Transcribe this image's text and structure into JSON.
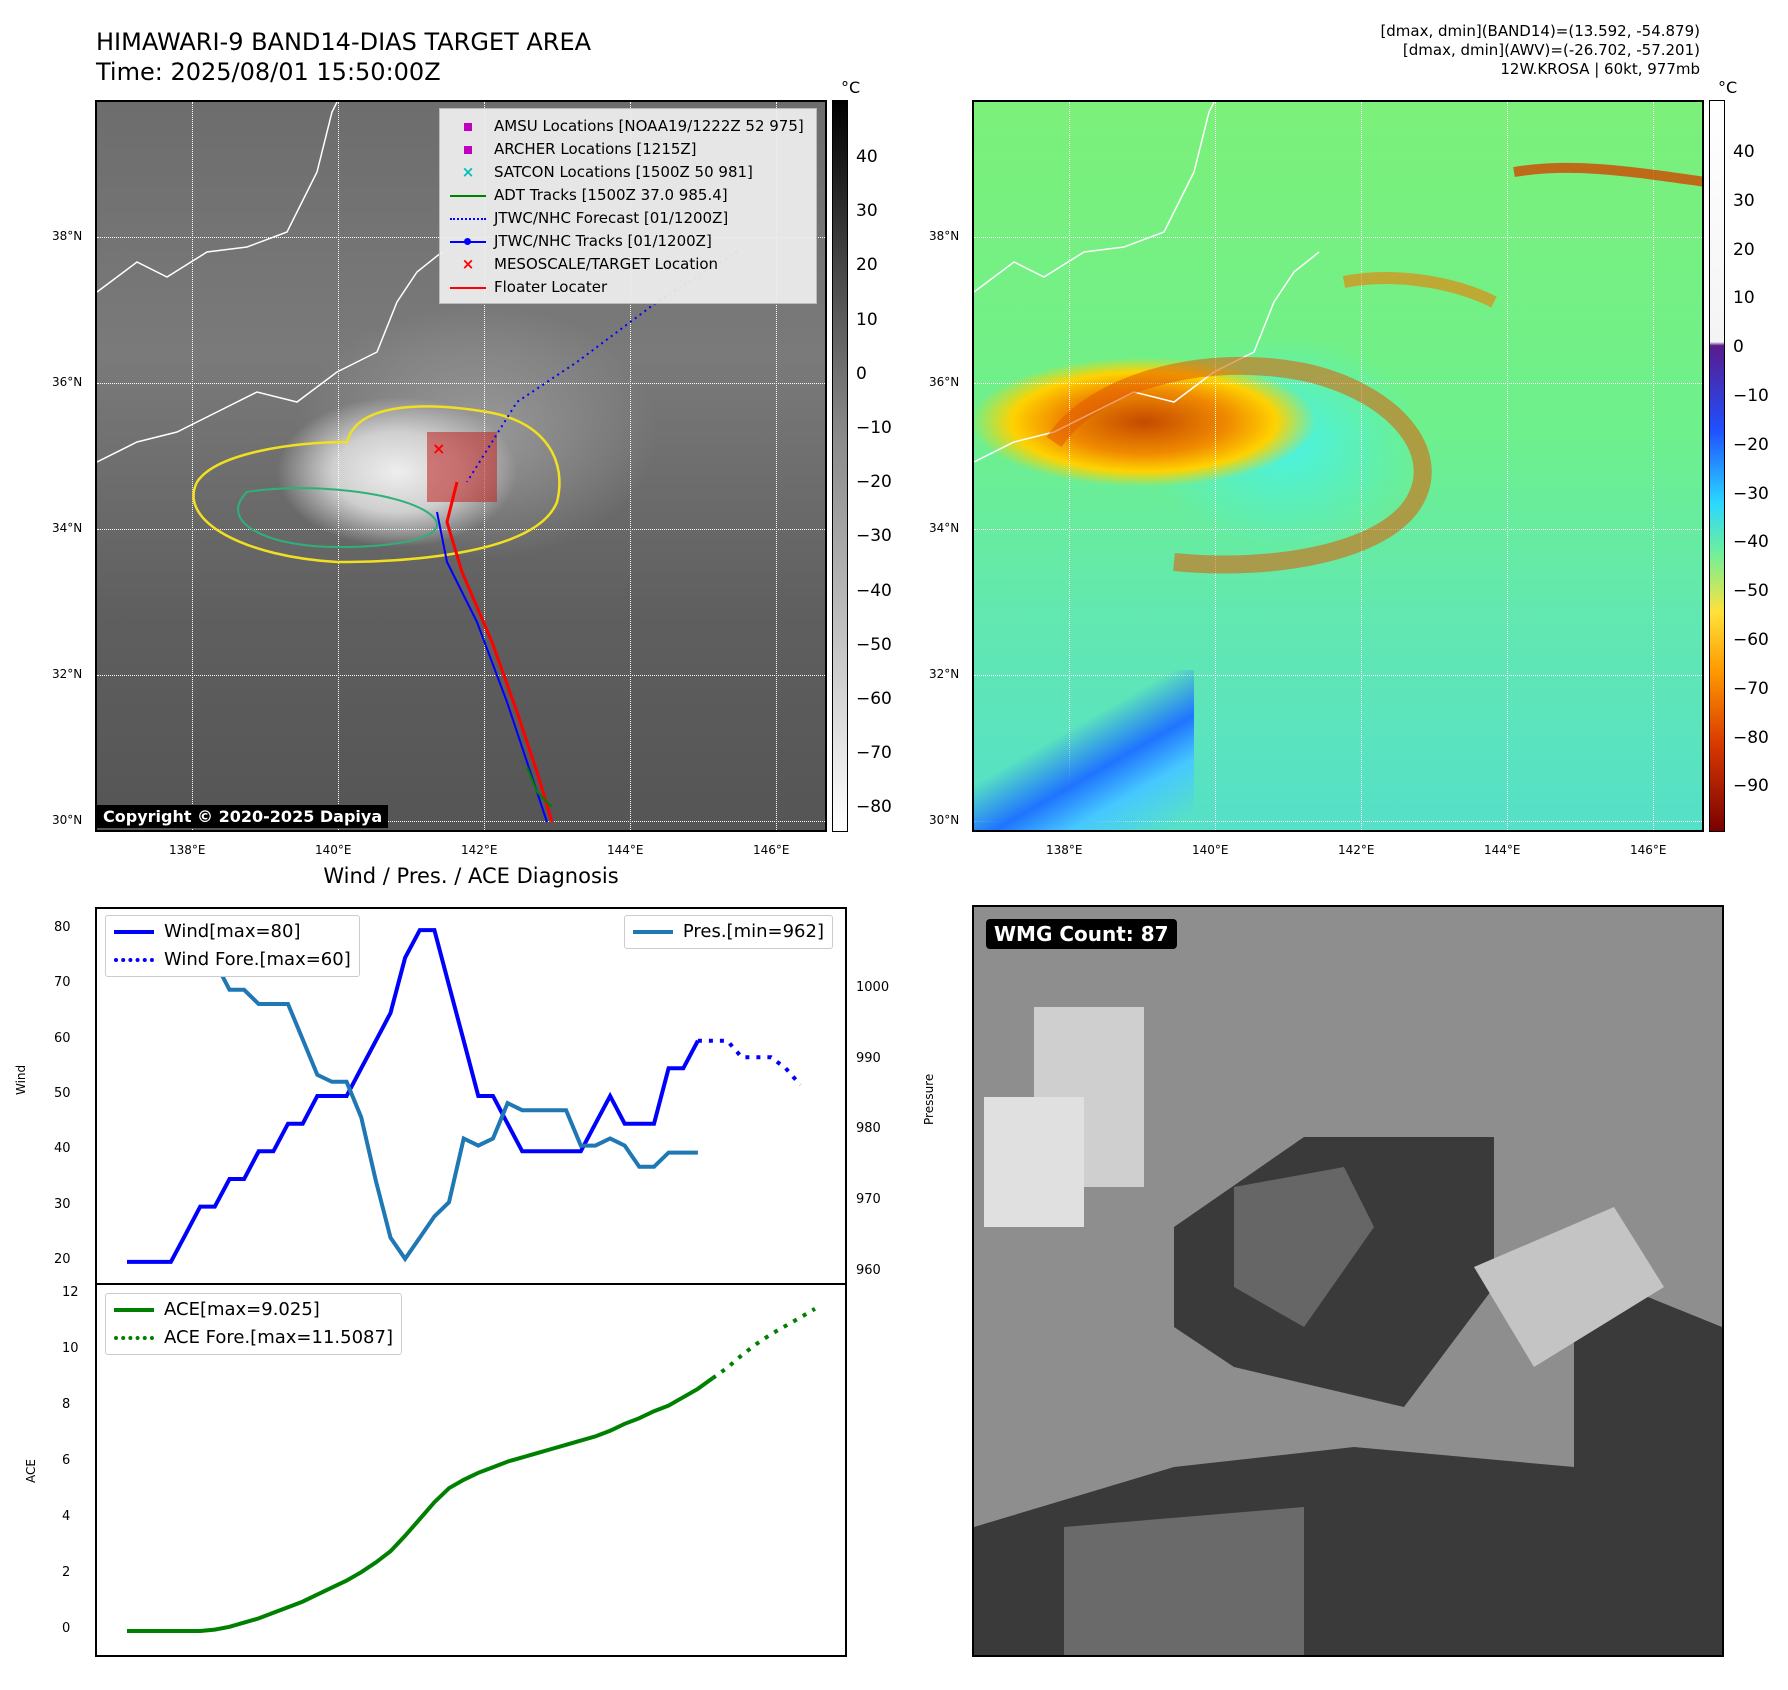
{
  "header": {
    "title_line1": "HIMAWARI-9 BAND14-DIAS TARGET AREA",
    "title_line2": "Time: 2025/08/01 15:50:00Z",
    "info_line1": "[dmax, dmin](BAND14)=(13.592, -54.879)",
    "info_line2": "[dmax, dmin](AWV)=(-26.702, -57.201)",
    "info_line3": "12W.KROSA | 60kt, 977mb"
  },
  "maps": {
    "lat_labels": [
      "38°N",
      "36°N",
      "34°N",
      "32°N",
      "30°N"
    ],
    "lon_labels": [
      "138°E",
      "140°E",
      "142°E",
      "144°E",
      "146°E"
    ],
    "copyright": "Copyright © 2020-2025 Dapiya",
    "colorbar1": {
      "unit": "°C",
      "ticks": [
        "40",
        "30",
        "20",
        "10",
        "0",
        "−10",
        "−20",
        "−30",
        "−40",
        "−50",
        "−60",
        "−70",
        "−80"
      ]
    },
    "colorbar2": {
      "unit": "°C",
      "ticks": [
        "40",
        "30",
        "20",
        "10",
        "0",
        "−10",
        "−20",
        "−30",
        "−40",
        "−50",
        "−60",
        "−70",
        "−80",
        "−90"
      ]
    },
    "legend": [
      {
        "label": "AMSU Locations [NOAA19/1222Z 52 975]",
        "icon": "square-marker",
        "color": "#bf00bf"
      },
      {
        "label": "ARCHER Locations [1215Z]",
        "icon": "square-marker",
        "color": "#bf00bf"
      },
      {
        "label": "SATCON Locations [1500Z 50 981]",
        "icon": "x-marker",
        "color": "#00bfbf"
      },
      {
        "label": "ADT Tracks [1500Z 37.0 985.4]",
        "icon": "solid-line",
        "color": "#008000"
      },
      {
        "label": "JTWC/NHC Forecast [01/1200Z]",
        "icon": "dotted-line",
        "color": "#0000ff"
      },
      {
        "label": "JTWC/NHC Tracks [01/1200Z]",
        "icon": "line-dot",
        "color": "#0000ff"
      },
      {
        "label": "MESOSCALE/TARGET Location",
        "icon": "x-marker",
        "color": "#ff0000"
      },
      {
        "label": "Floater Locater",
        "icon": "solid-line",
        "color": "#ff0000"
      }
    ]
  },
  "diagnosis": {
    "title": "Wind / Pres. / ACE Diagnosis",
    "wind_legend": "Wind[max=80]",
    "wind_fore_legend": "Wind Fore.[max=60]",
    "pres_legend": "Pres.[min=962]",
    "ace_legend": "ACE[max=9.025]",
    "ace_fore_legend": "ACE Fore.[max=11.5087]"
  },
  "wmg": {
    "label": "WMG Count: 87"
  },
  "chart_data": [
    {
      "type": "line",
      "name": "wind_pressure",
      "ylabel": "Wind",
      "y2label": "Pressure",
      "ylim": [
        18,
        82
      ],
      "y2lim": [
        960,
        1010
      ],
      "yticks": [
        20,
        30,
        40,
        50,
        60,
        70,
        80
      ],
      "y2ticks": [
        960,
        970,
        980,
        990,
        1000
      ],
      "series": [
        {
          "name": "Wind[max=80]",
          "color": "#0000ff",
          "style": "solid",
          "axis": "left",
          "values": [
            20,
            20,
            20,
            20,
            25,
            30,
            30,
            35,
            35,
            40,
            40,
            45,
            45,
            50,
            50,
            50,
            55,
            60,
            65,
            75,
            80,
            80,
            70,
            60,
            50,
            50,
            45,
            40,
            40,
            40,
            40,
            40,
            45,
            50,
            45,
            45,
            45,
            55,
            55,
            60
          ]
        },
        {
          "name": "Wind Fore.[max=60]",
          "color": "#0000ff",
          "style": "dotted",
          "axis": "left",
          "start_index": 39,
          "values": [
            60,
            60,
            60,
            57,
            57,
            57,
            55,
            52
          ]
        },
        {
          "name": "Pres.[min=962]",
          "color": "#1f77b4",
          "style": "solid",
          "axis": "right",
          "values": [
            1008,
            1008,
            1008,
            1008,
            1005,
            1005,
            1004,
            1000,
            1000,
            998,
            998,
            998,
            993,
            988,
            987,
            987,
            982,
            973,
            965,
            962,
            965,
            968,
            970,
            979,
            978,
            979,
            984,
            983,
            983,
            983,
            983,
            978,
            978,
            979,
            978,
            975,
            975,
            977,
            977,
            977
          ]
        }
      ]
    },
    {
      "type": "line",
      "name": "ace",
      "ylabel": "ACE",
      "ylim": [
        -0.5,
        12
      ],
      "yticks": [
        0,
        2,
        4,
        6,
        8,
        10,
        12
      ],
      "series": [
        {
          "name": "ACE[max=9.025]",
          "color": "#008000",
          "style": "solid",
          "values": [
            0,
            0,
            0,
            0,
            0,
            0,
            0.05,
            0.15,
            0.3,
            0.45,
            0.65,
            0.85,
            1.05,
            1.3,
            1.55,
            1.8,
            2.1,
            2.45,
            2.85,
            3.4,
            4.0,
            4.6,
            5.1,
            5.4,
            5.65,
            5.85,
            6.05,
            6.2,
            6.35,
            6.5,
            6.65,
            6.8,
            6.95,
            7.15,
            7.4,
            7.6,
            7.85,
            8.05,
            8.35,
            8.65,
            9.025
          ]
        },
        {
          "name": "ACE Fore.[max=11.5087]",
          "color": "#008000",
          "style": "dotted",
          "start_index": 40,
          "values": [
            9.025,
            9.4,
            9.85,
            10.25,
            10.6,
            10.9,
            11.2,
            11.5087
          ]
        }
      ]
    }
  ]
}
